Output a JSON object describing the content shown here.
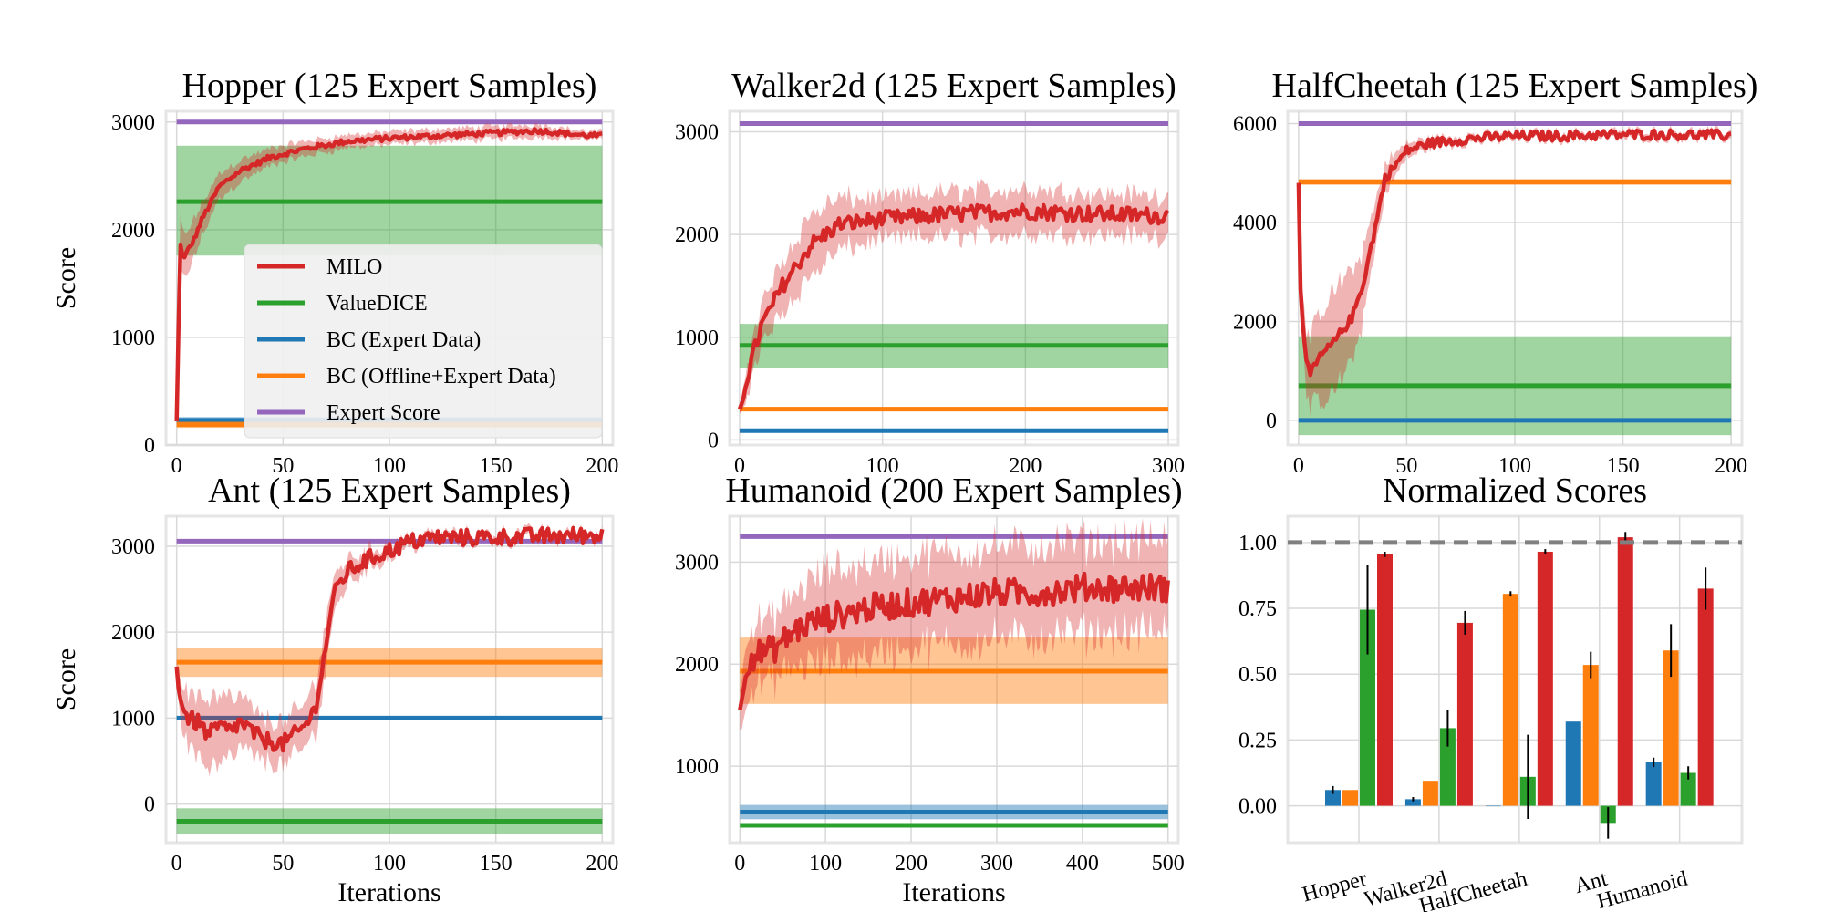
{
  "colors": {
    "milo": "#d62728",
    "valuedice": "#2ca02c",
    "bc_expert": "#1f77b4",
    "bc_offline": "#ff7f0e",
    "expert": "#9467bd",
    "grid": "#d9d9d9",
    "frame": "#e5e5e5"
  },
  "legend": {
    "items": [
      {
        "key": "milo",
        "label": "MILO"
      },
      {
        "key": "valuedice",
        "label": "ValueDICE"
      },
      {
        "key": "bc_expert",
        "label": "BC (Expert Data)"
      },
      {
        "key": "bc_offline",
        "label": "BC (Offline+Expert Data)"
      },
      {
        "key": "expert",
        "label": "Expert Score"
      }
    ]
  },
  "chart_data": [
    {
      "type": "line",
      "title": "Hopper (125 Expert Samples)",
      "xlabel": "",
      "ylabel": "Score",
      "xlim": [
        -5,
        205
      ],
      "ylim": [
        0,
        3100
      ],
      "xticks": [
        0,
        50,
        100,
        150,
        200
      ],
      "yticks": [
        0,
        1000,
        2000,
        3000
      ],
      "grid": true,
      "legend": "center-right",
      "horizontal": [
        {
          "key": "expert",
          "value": 3000
        },
        {
          "key": "valuedice",
          "value": 2260,
          "band": [
            1760,
            2780
          ]
        },
        {
          "key": "bc_expert",
          "value": 230,
          "band": [
            200,
            260
          ]
        },
        {
          "key": "bc_offline",
          "value": 190,
          "band": [
            160,
            220
          ]
        }
      ],
      "milo": {
        "x": [
          0,
          1,
          2,
          3,
          5,
          8,
          12,
          20,
          30,
          45,
          60,
          80,
          100,
          120,
          150,
          170,
          190,
          200
        ],
        "y": [
          220,
          1200,
          2000,
          1700,
          1800,
          1900,
          2100,
          2400,
          2550,
          2680,
          2750,
          2820,
          2850,
          2870,
          2900,
          2920,
          2880,
          2870
        ],
        "std": [
          40,
          250,
          250,
          200,
          200,
          180,
          150,
          120,
          100,
          80,
          70,
          60,
          60,
          60,
          60,
          60,
          40,
          40
        ],
        "noise": 25
      }
    },
    {
      "type": "line",
      "title": "Walker2d (125 Expert Samples)",
      "xlabel": "",
      "ylabel": "",
      "xlim": [
        -7,
        307
      ],
      "ylim": [
        -50,
        3200
      ],
      "xticks": [
        0,
        100,
        200,
        300
      ],
      "yticks": [
        0,
        1000,
        2000,
        3000
      ],
      "grid": true,
      "horizontal": [
        {
          "key": "expert",
          "value": 3080
        },
        {
          "key": "valuedice",
          "value": 920,
          "band": [
            700,
            1130
          ]
        },
        {
          "key": "bc_offline",
          "value": 300,
          "band": [
            280,
            320
          ]
        },
        {
          "key": "bc_expert",
          "value": 90,
          "band": [
            70,
            110
          ]
        }
      ],
      "milo": {
        "x": [
          0,
          5,
          15,
          30,
          50,
          70,
          100,
          150,
          200,
          250,
          300
        ],
        "y": [
          300,
          600,
          1100,
          1500,
          1900,
          2100,
          2150,
          2200,
          2230,
          2200,
          2180
        ],
        "std": [
          50,
          150,
          200,
          250,
          300,
          250,
          200,
          220,
          220,
          200,
          200
        ],
        "noise": 80
      }
    },
    {
      "type": "line",
      "title": "HalfCheetah (125 Expert Samples)",
      "xlabel": "",
      "ylabel": "",
      "xlim": [
        -5,
        205
      ],
      "ylim": [
        -500,
        6250
      ],
      "xticks": [
        0,
        50,
        100,
        150,
        200
      ],
      "yticks": [
        0,
        2000,
        4000,
        6000
      ],
      "grid": true,
      "horizontal": [
        {
          "key": "expert",
          "value": 6000
        },
        {
          "key": "bc_offline",
          "value": 4820,
          "band": [
            4760,
            4880
          ]
        },
        {
          "key": "valuedice",
          "value": 700,
          "band": [
            -300,
            1700
          ]
        },
        {
          "key": "bc_expert",
          "value": 0,
          "band": [
            -30,
            30
          ]
        }
      ],
      "milo": {
        "x": [
          0,
          1,
          3,
          5,
          8,
          10,
          15,
          20,
          25,
          30,
          35,
          40,
          50,
          60,
          80,
          100,
          120,
          150,
          170,
          190,
          200
        ],
        "y": [
          4800,
          2500,
          1500,
          900,
          1100,
          1300,
          1500,
          1800,
          2100,
          2800,
          3800,
          4900,
          5450,
          5600,
          5700,
          5750,
          5750,
          5780,
          5780,
          5770,
          5760
        ],
        "std": [
          100,
          400,
          600,
          700,
          800,
          900,
          1000,
          1000,
          900,
          700,
          500,
          300,
          150,
          100,
          80,
          80,
          80,
          80,
          80,
          80,
          80
        ],
        "noise": 100
      }
    },
    {
      "type": "line",
      "title": "Ant (125 Expert Samples)",
      "xlabel": "Iterations",
      "ylabel": "Score",
      "xlim": [
        -5,
        205
      ],
      "ylim": [
        -450,
        3350
      ],
      "xticks": [
        0,
        50,
        100,
        150,
        200
      ],
      "yticks": [
        0,
        1000,
        2000,
        3000
      ],
      "grid": true,
      "horizontal": [
        {
          "key": "expert",
          "value": 3060
        },
        {
          "key": "bc_offline",
          "value": 1650,
          "band": [
            1480,
            1820
          ]
        },
        {
          "key": "bc_expert",
          "value": 1000,
          "band": [
            980,
            1020
          ]
        },
        {
          "key": "valuedice",
          "value": -200,
          "band": [
            -350,
            -50
          ]
        }
      ],
      "milo": {
        "x": [
          0,
          2,
          5,
          10,
          15,
          20,
          25,
          30,
          40,
          50,
          55,
          60,
          65,
          70,
          72,
          75,
          80,
          90,
          100,
          110,
          120,
          140,
          160,
          180,
          200
        ],
        "y": [
          1600,
          1200,
          1000,
          950,
          800,
          900,
          850,
          950,
          750,
          700,
          800,
          900,
          1100,
          1800,
          2200,
          2500,
          2700,
          2850,
          2950,
          3050,
          3100,
          3100,
          3110,
          3120,
          3130
        ],
        "std": [
          60,
          250,
          300,
          350,
          400,
          400,
          350,
          300,
          250,
          250,
          250,
          250,
          300,
          300,
          250,
          200,
          150,
          100,
          80,
          60,
          50,
          50,
          50,
          50,
          40
        ],
        "noise": 100
      }
    },
    {
      "type": "line",
      "title": "Humanoid (200 Expert Samples)",
      "xlabel": "Iterations",
      "ylabel": "",
      "xlim": [
        -12,
        512
      ],
      "ylim": [
        250,
        3450
      ],
      "xticks": [
        0,
        100,
        200,
        300,
        400,
        500
      ],
      "yticks": [
        1000,
        2000,
        3000
      ],
      "grid": true,
      "horizontal": [
        {
          "key": "expert",
          "value": 3250
        },
        {
          "key": "bc_offline",
          "value": 1930,
          "band": [
            1610,
            2260
          ]
        },
        {
          "key": "bc_expert",
          "value": 550,
          "band": [
            480,
            620
          ]
        },
        {
          "key": "valuedice",
          "value": 420,
          "band": [
            400,
            440
          ]
        }
      ],
      "milo": {
        "x": [
          0,
          5,
          10,
          20,
          40,
          60,
          80,
          100,
          150,
          200,
          250,
          300,
          350,
          400,
          450,
          500
        ],
        "y": [
          1550,
          1900,
          2050,
          2100,
          2150,
          2300,
          2400,
          2450,
          2550,
          2600,
          2650,
          2700,
          2700,
          2750,
          2750,
          2750
        ],
        "std": [
          200,
          300,
          300,
          300,
          300,
          350,
          400,
          450,
          450,
          450,
          450,
          450,
          450,
          450,
          450,
          450
        ],
        "noise": 140
      }
    },
    {
      "type": "bar",
      "title": "Normalized Scores",
      "xlabel": "",
      "ylabel": "",
      "categories": [
        "Hopper",
        "Walker2d",
        "HalfCheetah",
        "Ant",
        "Humanoid"
      ],
      "ylim": [
        -0.14,
        1.1
      ],
      "yticks": [
        0.0,
        0.25,
        0.5,
        0.75,
        1.0
      ],
      "ytick_labels": [
        "0.00",
        "0.25",
        "0.50",
        "0.75",
        "1.00"
      ],
      "reference_line": 1.0,
      "grid": true,
      "series": [
        {
          "key": "bc_expert",
          "values": [
            0.06,
            0.025,
            0.0,
            0.32,
            0.165
          ],
          "err": [
            0.015,
            0.008,
            0.0,
            0.0,
            0.018
          ]
        },
        {
          "key": "bc_offline",
          "values": [
            0.06,
            0.095,
            0.805,
            0.535,
            0.59
          ],
          "err": [
            0.0,
            0.0,
            0.01,
            0.05,
            0.1
          ]
        },
        {
          "key": "valuedice",
          "values": [
            0.745,
            0.295,
            0.11,
            -0.065,
            0.125
          ],
          "err": [
            0.17,
            0.07,
            0.16,
            0.06,
            0.025
          ]
        },
        {
          "key": "milo",
          "values": [
            0.955,
            0.695,
            0.965,
            1.02,
            0.825
          ],
          "err": [
            0.01,
            0.045,
            0.01,
            0.02,
            0.08
          ]
        }
      ]
    }
  ]
}
